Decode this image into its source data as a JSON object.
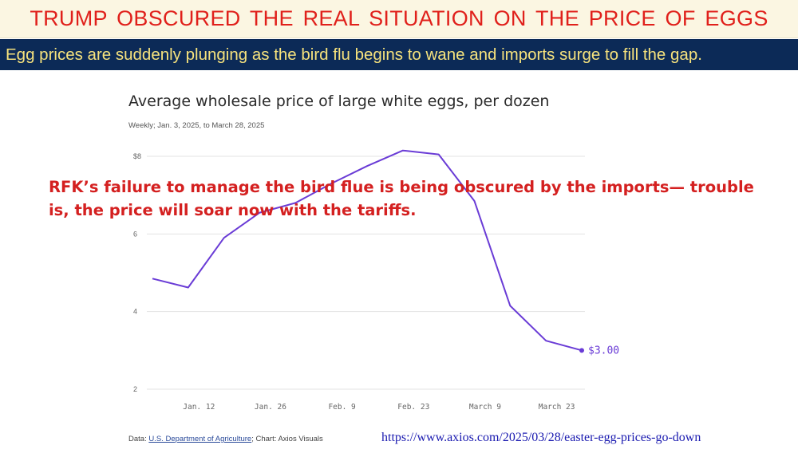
{
  "header": {
    "title": "TRUMP OBSCURED THE REAL SITUATION ON THE PRICE OF EGGS",
    "subtitle": "Egg prices are suddenly plunging as the bird flu begins to wane and imports surge to fill the gap."
  },
  "annotation": {
    "line1": "RFK’s failure to manage the bird flue is being obscured by the imports— trouble",
    "line2": "is, the price will soar now with the tariffs."
  },
  "footer": {
    "source_prefix": "Data: ",
    "source_link": "U.S. Department of Agriculture",
    "source_suffix": "; Chart: Axios Visuals",
    "url": "https://www.axios.com/2025/03/28/easter-egg-prices-go-down"
  },
  "chart_data": {
    "type": "line",
    "title": "Average wholesale price of large white eggs, per dozen",
    "subtitle": "Weekly; Jan. 3, 2025, to March 28, 2025",
    "xlabel": "",
    "ylabel": "",
    "ylim": [
      2,
      8
    ],
    "yticks": [
      2,
      4,
      6,
      8
    ],
    "ytick_labels": [
      "2",
      "4",
      "6",
      "$8"
    ],
    "x_tick_labels": [
      "Jan. 12",
      "Jan. 26",
      "Feb. 9",
      "Feb. 23",
      "March 9",
      "March 23"
    ],
    "grid": true,
    "series": [
      {
        "x": [
          "Jan. 3",
          "Jan. 10",
          "Jan. 17",
          "Jan. 24",
          "Jan. 31",
          "Feb. 7",
          "Feb. 14",
          "Feb. 21",
          "Feb. 28",
          "March 7",
          "March 14",
          "March 21",
          "March 28"
        ],
        "values": [
          4.85,
          4.62,
          5.9,
          6.55,
          6.8,
          7.3,
          7.75,
          8.15,
          8.05,
          6.85,
          4.15,
          3.25,
          3.0
        ],
        "color": "#6a3cd6"
      }
    ],
    "end_label": "$3.00"
  }
}
